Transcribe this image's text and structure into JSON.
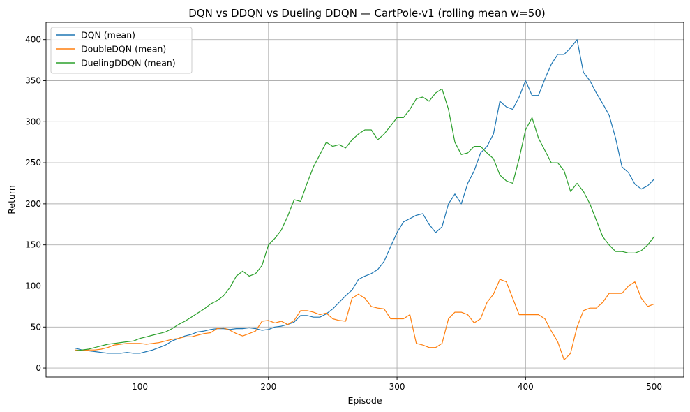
{
  "chart_data": {
    "type": "line",
    "title": "DQN vs DDQN vs Dueling DDQN — CartPole-v1 (rolling mean w=50)",
    "xlabel": "Episode",
    "ylabel": "Return",
    "xlim": [
      27,
      523
    ],
    "ylim": [
      -11,
      421
    ],
    "xticks": [
      100,
      200,
      300,
      400,
      500
    ],
    "yticks": [
      0,
      50,
      100,
      150,
      200,
      250,
      300,
      350,
      400
    ],
    "grid": true,
    "legend_position": "top-left",
    "series": [
      {
        "name": "DQN (mean)",
        "color": "#1f77b4",
        "points": [
          [
            50,
            24
          ],
          [
            55,
            22
          ],
          [
            60,
            21
          ],
          [
            65,
            20
          ],
          [
            70,
            19
          ],
          [
            75,
            18
          ],
          [
            80,
            18
          ],
          [
            85,
            18
          ],
          [
            90,
            19
          ],
          [
            95,
            18
          ],
          [
            100,
            18
          ],
          [
            105,
            20
          ],
          [
            110,
            22
          ],
          [
            115,
            25
          ],
          [
            120,
            28
          ],
          [
            125,
            33
          ],
          [
            130,
            36
          ],
          [
            135,
            39
          ],
          [
            140,
            41
          ],
          [
            145,
            44
          ],
          [
            150,
            45
          ],
          [
            155,
            47
          ],
          [
            160,
            48
          ],
          [
            165,
            48
          ],
          [
            170,
            47
          ],
          [
            175,
            48
          ],
          [
            180,
            48
          ],
          [
            185,
            49
          ],
          [
            190,
            48
          ],
          [
            195,
            46
          ],
          [
            200,
            47
          ],
          [
            205,
            50
          ],
          [
            210,
            51
          ],
          [
            215,
            53
          ],
          [
            220,
            56
          ],
          [
            225,
            64
          ],
          [
            230,
            64
          ],
          [
            235,
            62
          ],
          [
            240,
            62
          ],
          [
            245,
            66
          ],
          [
            250,
            72
          ],
          [
            255,
            80
          ],
          [
            260,
            88
          ],
          [
            265,
            95
          ],
          [
            270,
            108
          ],
          [
            275,
            112
          ],
          [
            280,
            115
          ],
          [
            285,
            120
          ],
          [
            290,
            130
          ],
          [
            295,
            148
          ],
          [
            300,
            165
          ],
          [
            305,
            178
          ],
          [
            310,
            182
          ],
          [
            315,
            186
          ],
          [
            320,
            188
          ],
          [
            325,
            175
          ],
          [
            330,
            165
          ],
          [
            335,
            172
          ],
          [
            340,
            200
          ],
          [
            345,
            212
          ],
          [
            350,
            200
          ],
          [
            355,
            225
          ],
          [
            360,
            240
          ],
          [
            365,
            262
          ],
          [
            370,
            270
          ],
          [
            375,
            285
          ],
          [
            380,
            325
          ],
          [
            385,
            318
          ],
          [
            390,
            315
          ],
          [
            395,
            330
          ],
          [
            400,
            350
          ],
          [
            405,
            332
          ],
          [
            410,
            332
          ],
          [
            415,
            352
          ],
          [
            420,
            370
          ],
          [
            425,
            382
          ],
          [
            430,
            382
          ],
          [
            435,
            390
          ],
          [
            440,
            400
          ],
          [
            445,
            360
          ],
          [
            450,
            350
          ],
          [
            455,
            335
          ],
          [
            460,
            322
          ],
          [
            465,
            308
          ],
          [
            470,
            280
          ],
          [
            475,
            245
          ],
          [
            480,
            238
          ],
          [
            485,
            224
          ],
          [
            490,
            218
          ],
          [
            495,
            222
          ],
          [
            500,
            230
          ]
        ]
      },
      {
        "name": "DoubleDQN (mean)",
        "color": "#ff7f0e",
        "points": [
          [
            50,
            22
          ],
          [
            55,
            21
          ],
          [
            60,
            22
          ],
          [
            65,
            22
          ],
          [
            70,
            23
          ],
          [
            75,
            25
          ],
          [
            80,
            28
          ],
          [
            85,
            29
          ],
          [
            90,
            30
          ],
          [
            95,
            30
          ],
          [
            100,
            30
          ],
          [
            105,
            29
          ],
          [
            110,
            30
          ],
          [
            115,
            31
          ],
          [
            120,
            33
          ],
          [
            125,
            35
          ],
          [
            130,
            36
          ],
          [
            135,
            38
          ],
          [
            140,
            38
          ],
          [
            145,
            40
          ],
          [
            150,
            42
          ],
          [
            155,
            43
          ],
          [
            160,
            48
          ],
          [
            165,
            49
          ],
          [
            170,
            46
          ],
          [
            175,
            42
          ],
          [
            180,
            39
          ],
          [
            185,
            42
          ],
          [
            190,
            45
          ],
          [
            195,
            57
          ],
          [
            200,
            58
          ],
          [
            205,
            55
          ],
          [
            210,
            57
          ],
          [
            215,
            53
          ],
          [
            220,
            58
          ],
          [
            225,
            70
          ],
          [
            230,
            70
          ],
          [
            235,
            68
          ],
          [
            240,
            65
          ],
          [
            245,
            67
          ],
          [
            250,
            60
          ],
          [
            255,
            58
          ],
          [
            260,
            57
          ],
          [
            265,
            85
          ],
          [
            270,
            90
          ],
          [
            275,
            85
          ],
          [
            280,
            75
          ],
          [
            285,
            73
          ],
          [
            290,
            72
          ],
          [
            295,
            60
          ],
          [
            300,
            60
          ],
          [
            305,
            60
          ],
          [
            310,
            65
          ],
          [
            315,
            30
          ],
          [
            320,
            28
          ],
          [
            325,
            25
          ],
          [
            330,
            25
          ],
          [
            335,
            30
          ],
          [
            340,
            60
          ],
          [
            345,
            68
          ],
          [
            350,
            68
          ],
          [
            355,
            65
          ],
          [
            360,
            55
          ],
          [
            365,
            60
          ],
          [
            370,
            80
          ],
          [
            375,
            90
          ],
          [
            380,
            108
          ],
          [
            385,
            105
          ],
          [
            390,
            85
          ],
          [
            395,
            65
          ],
          [
            400,
            65
          ],
          [
            405,
            65
          ],
          [
            410,
            65
          ],
          [
            415,
            60
          ],
          [
            420,
            45
          ],
          [
            425,
            32
          ],
          [
            430,
            10
          ],
          [
            435,
            18
          ],
          [
            440,
            50
          ],
          [
            445,
            70
          ],
          [
            450,
            73
          ],
          [
            455,
            73
          ],
          [
            460,
            80
          ],
          [
            465,
            91
          ],
          [
            470,
            91
          ],
          [
            475,
            91
          ],
          [
            480,
            100
          ],
          [
            485,
            105
          ],
          [
            490,
            85
          ],
          [
            495,
            75
          ],
          [
            500,
            78
          ]
        ]
      },
      {
        "name": "DuelingDDQN (mean)",
        "color": "#2ca02c",
        "points": [
          [
            50,
            21
          ],
          [
            55,
            22
          ],
          [
            60,
            23
          ],
          [
            65,
            25
          ],
          [
            70,
            27
          ],
          [
            75,
            29
          ],
          [
            80,
            30
          ],
          [
            85,
            31
          ],
          [
            90,
            32
          ],
          [
            95,
            33
          ],
          [
            100,
            36
          ],
          [
            105,
            38
          ],
          [
            110,
            40
          ],
          [
            115,
            42
          ],
          [
            120,
            44
          ],
          [
            125,
            48
          ],
          [
            130,
            53
          ],
          [
            135,
            57
          ],
          [
            140,
            62
          ],
          [
            145,
            67
          ],
          [
            150,
            72
          ],
          [
            155,
            78
          ],
          [
            160,
            82
          ],
          [
            165,
            88
          ],
          [
            170,
            98
          ],
          [
            175,
            112
          ],
          [
            180,
            118
          ],
          [
            185,
            112
          ],
          [
            190,
            115
          ],
          [
            195,
            125
          ],
          [
            200,
            150
          ],
          [
            205,
            158
          ],
          [
            210,
            168
          ],
          [
            215,
            185
          ],
          [
            220,
            205
          ],
          [
            225,
            203
          ],
          [
            230,
            225
          ],
          [
            235,
            245
          ],
          [
            240,
            260
          ],
          [
            245,
            275
          ],
          [
            250,
            270
          ],
          [
            255,
            272
          ],
          [
            260,
            268
          ],
          [
            265,
            278
          ],
          [
            270,
            285
          ],
          [
            275,
            290
          ],
          [
            280,
            290
          ],
          [
            285,
            278
          ],
          [
            290,
            285
          ],
          [
            295,
            295
          ],
          [
            300,
            305
          ],
          [
            305,
            305
          ],
          [
            310,
            315
          ],
          [
            315,
            328
          ],
          [
            320,
            330
          ],
          [
            325,
            325
          ],
          [
            330,
            335
          ],
          [
            335,
            340
          ],
          [
            340,
            315
          ],
          [
            345,
            275
          ],
          [
            350,
            260
          ],
          [
            355,
            262
          ],
          [
            360,
            270
          ],
          [
            365,
            270
          ],
          [
            370,
            262
          ],
          [
            375,
            255
          ],
          [
            380,
            235
          ],
          [
            385,
            228
          ],
          [
            390,
            225
          ],
          [
            395,
            255
          ],
          [
            400,
            290
          ],
          [
            405,
            305
          ],
          [
            410,
            280
          ],
          [
            415,
            265
          ],
          [
            420,
            250
          ],
          [
            425,
            250
          ],
          [
            430,
            240
          ],
          [
            435,
            215
          ],
          [
            440,
            225
          ],
          [
            445,
            215
          ],
          [
            450,
            200
          ],
          [
            455,
            180
          ],
          [
            460,
            160
          ],
          [
            465,
            150
          ],
          [
            470,
            142
          ],
          [
            475,
            142
          ],
          [
            480,
            140
          ],
          [
            485,
            140
          ],
          [
            490,
            143
          ],
          [
            495,
            150
          ],
          [
            500,
            160
          ]
        ]
      }
    ]
  }
}
